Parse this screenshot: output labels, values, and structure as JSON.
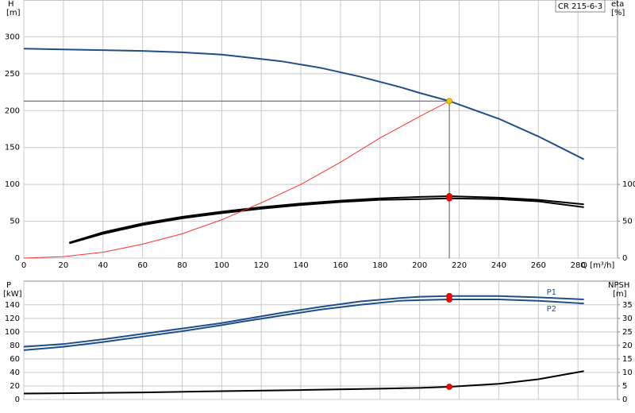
{
  "chart_data": [
    {
      "type": "line",
      "model_label": "CR 215-6-3",
      "ylabel": "H",
      "yunit": "[m]",
      "y2label": "eta",
      "y2unit": "[%]",
      "xlabel": "Q [m³/h]",
      "xlim": [
        0,
        300
      ],
      "xticks": [
        0,
        20,
        40,
        60,
        80,
        100,
        120,
        140,
        160,
        180,
        200,
        220,
        240,
        260,
        280
      ],
      "ylim": [
        0,
        350
      ],
      "yticks": [
        0,
        50,
        100,
        150,
        200,
        250,
        300
      ],
      "y2lim": [
        0,
        350
      ],
      "y2ticks": [
        0,
        50,
        100
      ],
      "grid": true,
      "duty_point": {
        "x": 215,
        "y": 213
      },
      "series": [
        {
          "color": "#1f4e8c",
          "axis": "y",
          "x": [
            0,
            20,
            40,
            60,
            80,
            100,
            110,
            130,
            150,
            170,
            190,
            200,
            215,
            240,
            260,
            283
          ],
          "values": [
            284,
            283,
            282,
            281,
            279,
            276,
            273,
            267,
            258,
            246,
            232,
            224,
            213,
            189,
            165,
            134
          ]
        },
        {
          "color": "#000000",
          "axis": "y2",
          "x": [
            23,
            40,
            60,
            80,
            100,
            120,
            140,
            160,
            180,
            200,
            215,
            240,
            260,
            283
          ],
          "values": [
            21,
            35,
            47,
            56,
            63,
            69,
            74,
            78,
            81,
            83,
            84,
            82,
            79,
            73
          ]
        },
        {
          "color": "#000000",
          "axis": "y2",
          "x": [
            23,
            40,
            60,
            80,
            100,
            120,
            140,
            160,
            180,
            200,
            215,
            240,
            260,
            283
          ],
          "values": [
            20,
            33,
            45,
            54,
            61,
            67,
            72,
            76,
            79,
            80,
            81,
            80,
            77,
            69
          ]
        },
        {
          "color": "#ff3030",
          "axis": "y",
          "x": [
            0,
            20,
            40,
            60,
            80,
            100,
            120,
            140,
            160,
            180,
            200,
            215
          ],
          "values": [
            0,
            2,
            8,
            19,
            33,
            52,
            75,
            100,
            130,
            163,
            192,
            213
          ]
        }
      ],
      "points": [
        {
          "x": 215,
          "y": 213,
          "axis": "y",
          "color": "#f5c400"
        },
        {
          "x": 215,
          "y": 84,
          "axis": "y2",
          "color": "#ff0000"
        },
        {
          "x": 215,
          "y": 81,
          "axis": "y2",
          "color": "#ff0000"
        }
      ]
    },
    {
      "type": "line",
      "ylabel": "P",
      "yunit": "[kW]",
      "y2label": "NPSH",
      "y2unit": "[m]",
      "xlim": [
        0,
        300
      ],
      "xticks": [
        0,
        20,
        40,
        60,
        80,
        100,
        120,
        140,
        160,
        180,
        200,
        220,
        240,
        260,
        280
      ],
      "ylim": [
        0,
        175
      ],
      "yticks": [
        0,
        20,
        40,
        60,
        80,
        100,
        120,
        140
      ],
      "y2lim": [
        0,
        43.75
      ],
      "y2ticks": [
        0,
        5,
        10,
        15,
        20,
        25,
        30,
        35
      ],
      "grid": true,
      "series": [
        {
          "name": "P1",
          "color": "#1f4e8c",
          "axis": "y",
          "x": [
            0,
            20,
            40,
            60,
            80,
            100,
            110,
            130,
            150,
            170,
            190,
            200,
            215,
            240,
            260,
            283
          ],
          "values": [
            78,
            82,
            89,
            97,
            105,
            113,
            118,
            128,
            137,
            145,
            150,
            152,
            153,
            153,
            151,
            148
          ]
        },
        {
          "name": "P2",
          "color": "#1f4e8c",
          "axis": "y",
          "x": [
            0,
            20,
            40,
            60,
            80,
            100,
            110,
            130,
            150,
            170,
            190,
            200,
            215,
            240,
            260,
            283
          ],
          "values": [
            73,
            78,
            85,
            93,
            101,
            110,
            115,
            124,
            133,
            140,
            146,
            147,
            148,
            148,
            146,
            142
          ]
        },
        {
          "color": "#000000",
          "axis": "y2",
          "x": [
            0,
            20,
            60,
            100,
            140,
            180,
            200,
            215,
            240,
            260,
            283
          ],
          "values": [
            2.2,
            2.3,
            2.6,
            3.1,
            3.5,
            4,
            4.3,
            4.7,
            5.8,
            7.5,
            10.5
          ]
        }
      ],
      "points": [
        {
          "x": 215,
          "y": 153,
          "axis": "y",
          "color": "#ff0000"
        },
        {
          "x": 215,
          "y": 148,
          "axis": "y",
          "color": "#ff0000"
        },
        {
          "x": 215,
          "y": 4.7,
          "axis": "y2",
          "color": "#ff0000"
        }
      ]
    }
  ]
}
